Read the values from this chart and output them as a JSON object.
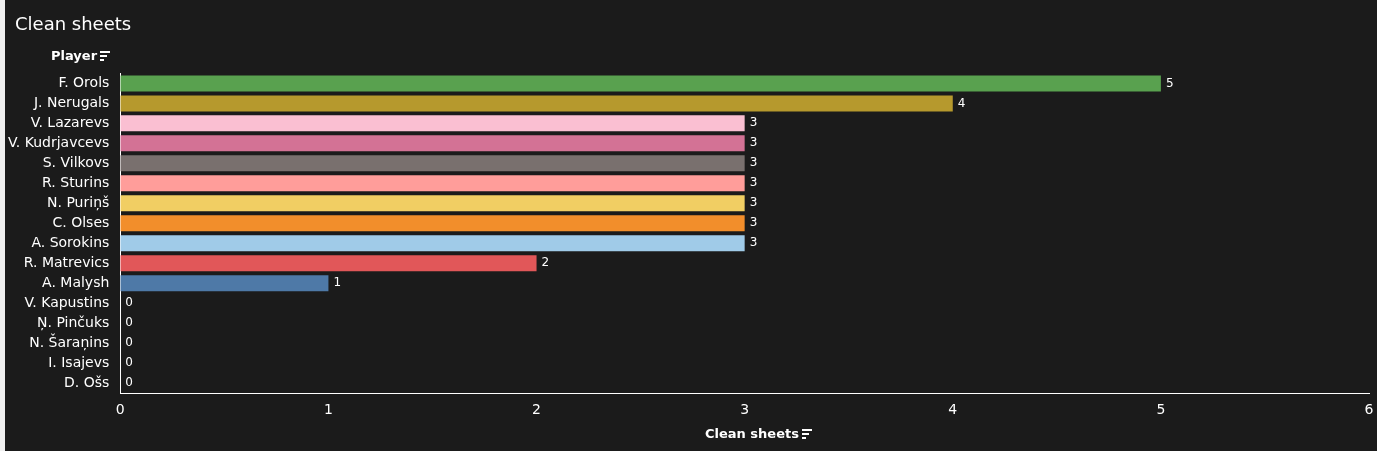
{
  "chart_data": {
    "type": "bar",
    "orientation": "horizontal",
    "title": "Clean sheets",
    "xlabel": "Clean sheets",
    "ylabel": "Player",
    "categories": [
      "F. Orols",
      "J. Nerugals",
      "V. Lazarevs",
      "V. Kudrjavcevs",
      "S. Vilkovs",
      "R. Sturins",
      "N. Puriņš",
      "C. Olses",
      "A. Sorokins",
      "R. Matrevics",
      "A. Malysh",
      "V. Kapustins",
      "Ņ. Pinčuks",
      "N. Šaraņins",
      "I. Isajevs",
      "D. Ošs"
    ],
    "values": [
      5,
      4,
      3,
      3,
      3,
      3,
      3,
      3,
      3,
      2,
      1,
      0,
      0,
      0,
      0,
      0
    ],
    "colors": [
      "#59a14f",
      "#b6992d",
      "#fabfd2",
      "#d37295",
      "#79706e",
      "#ff9d9a",
      "#f1ce63",
      "#f28e2b",
      "#a0cbe8",
      "#e15759",
      "#4e79a7",
      "#8cd17d",
      "#b07aa1",
      "#9d7660",
      "#86bcb6",
      "#499894"
    ],
    "xlim": [
      0,
      6
    ],
    "xticks": [
      0,
      1,
      2,
      3,
      4,
      5,
      6
    ],
    "data_labels": true
  }
}
